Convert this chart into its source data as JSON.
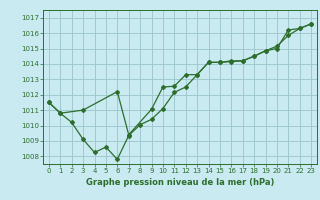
{
  "title": "Graphe pression niveau de la mer (hPa)",
  "bg_color": "#c8eaf0",
  "line_color": "#2d6e2d",
  "grid_color": "#a0c8d0",
  "ylim": [
    1007.5,
    1017.5
  ],
  "xlim": [
    -0.5,
    23.5
  ],
  "yticks": [
    1008,
    1009,
    1010,
    1011,
    1012,
    1013,
    1014,
    1015,
    1016,
    1017
  ],
  "xticks": [
    0,
    1,
    2,
    3,
    4,
    5,
    6,
    7,
    8,
    9,
    10,
    11,
    12,
    13,
    14,
    15,
    16,
    17,
    18,
    19,
    20,
    21,
    22,
    23
  ],
  "series1": [
    [
      0,
      1011.5
    ],
    [
      1,
      1010.8
    ],
    [
      2,
      1010.2
    ],
    [
      3,
      1009.1
    ],
    [
      4,
      1008.25
    ],
    [
      5,
      1008.6
    ],
    [
      6,
      1007.8
    ],
    [
      7,
      1009.35
    ],
    [
      8,
      1010.05
    ],
    [
      9,
      1010.4
    ],
    [
      10,
      1011.1
    ],
    [
      11,
      1012.15
    ],
    [
      12,
      1012.5
    ],
    [
      13,
      1013.3
    ],
    [
      14,
      1014.1
    ],
    [
      15,
      1014.1
    ],
    [
      16,
      1014.15
    ],
    [
      17,
      1014.2
    ],
    [
      18,
      1014.5
    ],
    [
      19,
      1014.85
    ],
    [
      20,
      1015.0
    ],
    [
      21,
      1016.2
    ],
    [
      22,
      1016.3
    ],
    [
      23,
      1016.6
    ]
  ],
  "series2": [
    [
      0,
      1011.5
    ],
    [
      1,
      1010.8
    ],
    [
      3,
      1011.0
    ],
    [
      6,
      1012.2
    ],
    [
      7,
      1009.4
    ],
    [
      9,
      1011.05
    ],
    [
      10,
      1012.5
    ],
    [
      11,
      1012.55
    ],
    [
      12,
      1013.3
    ],
    [
      13,
      1013.3
    ],
    [
      14,
      1014.1
    ],
    [
      15,
      1014.1
    ],
    [
      16,
      1014.2
    ],
    [
      17,
      1014.2
    ],
    [
      18,
      1014.5
    ],
    [
      19,
      1014.85
    ],
    [
      20,
      1015.15
    ],
    [
      21,
      1015.85
    ],
    [
      22,
      1016.3
    ],
    [
      23,
      1016.6
    ]
  ]
}
